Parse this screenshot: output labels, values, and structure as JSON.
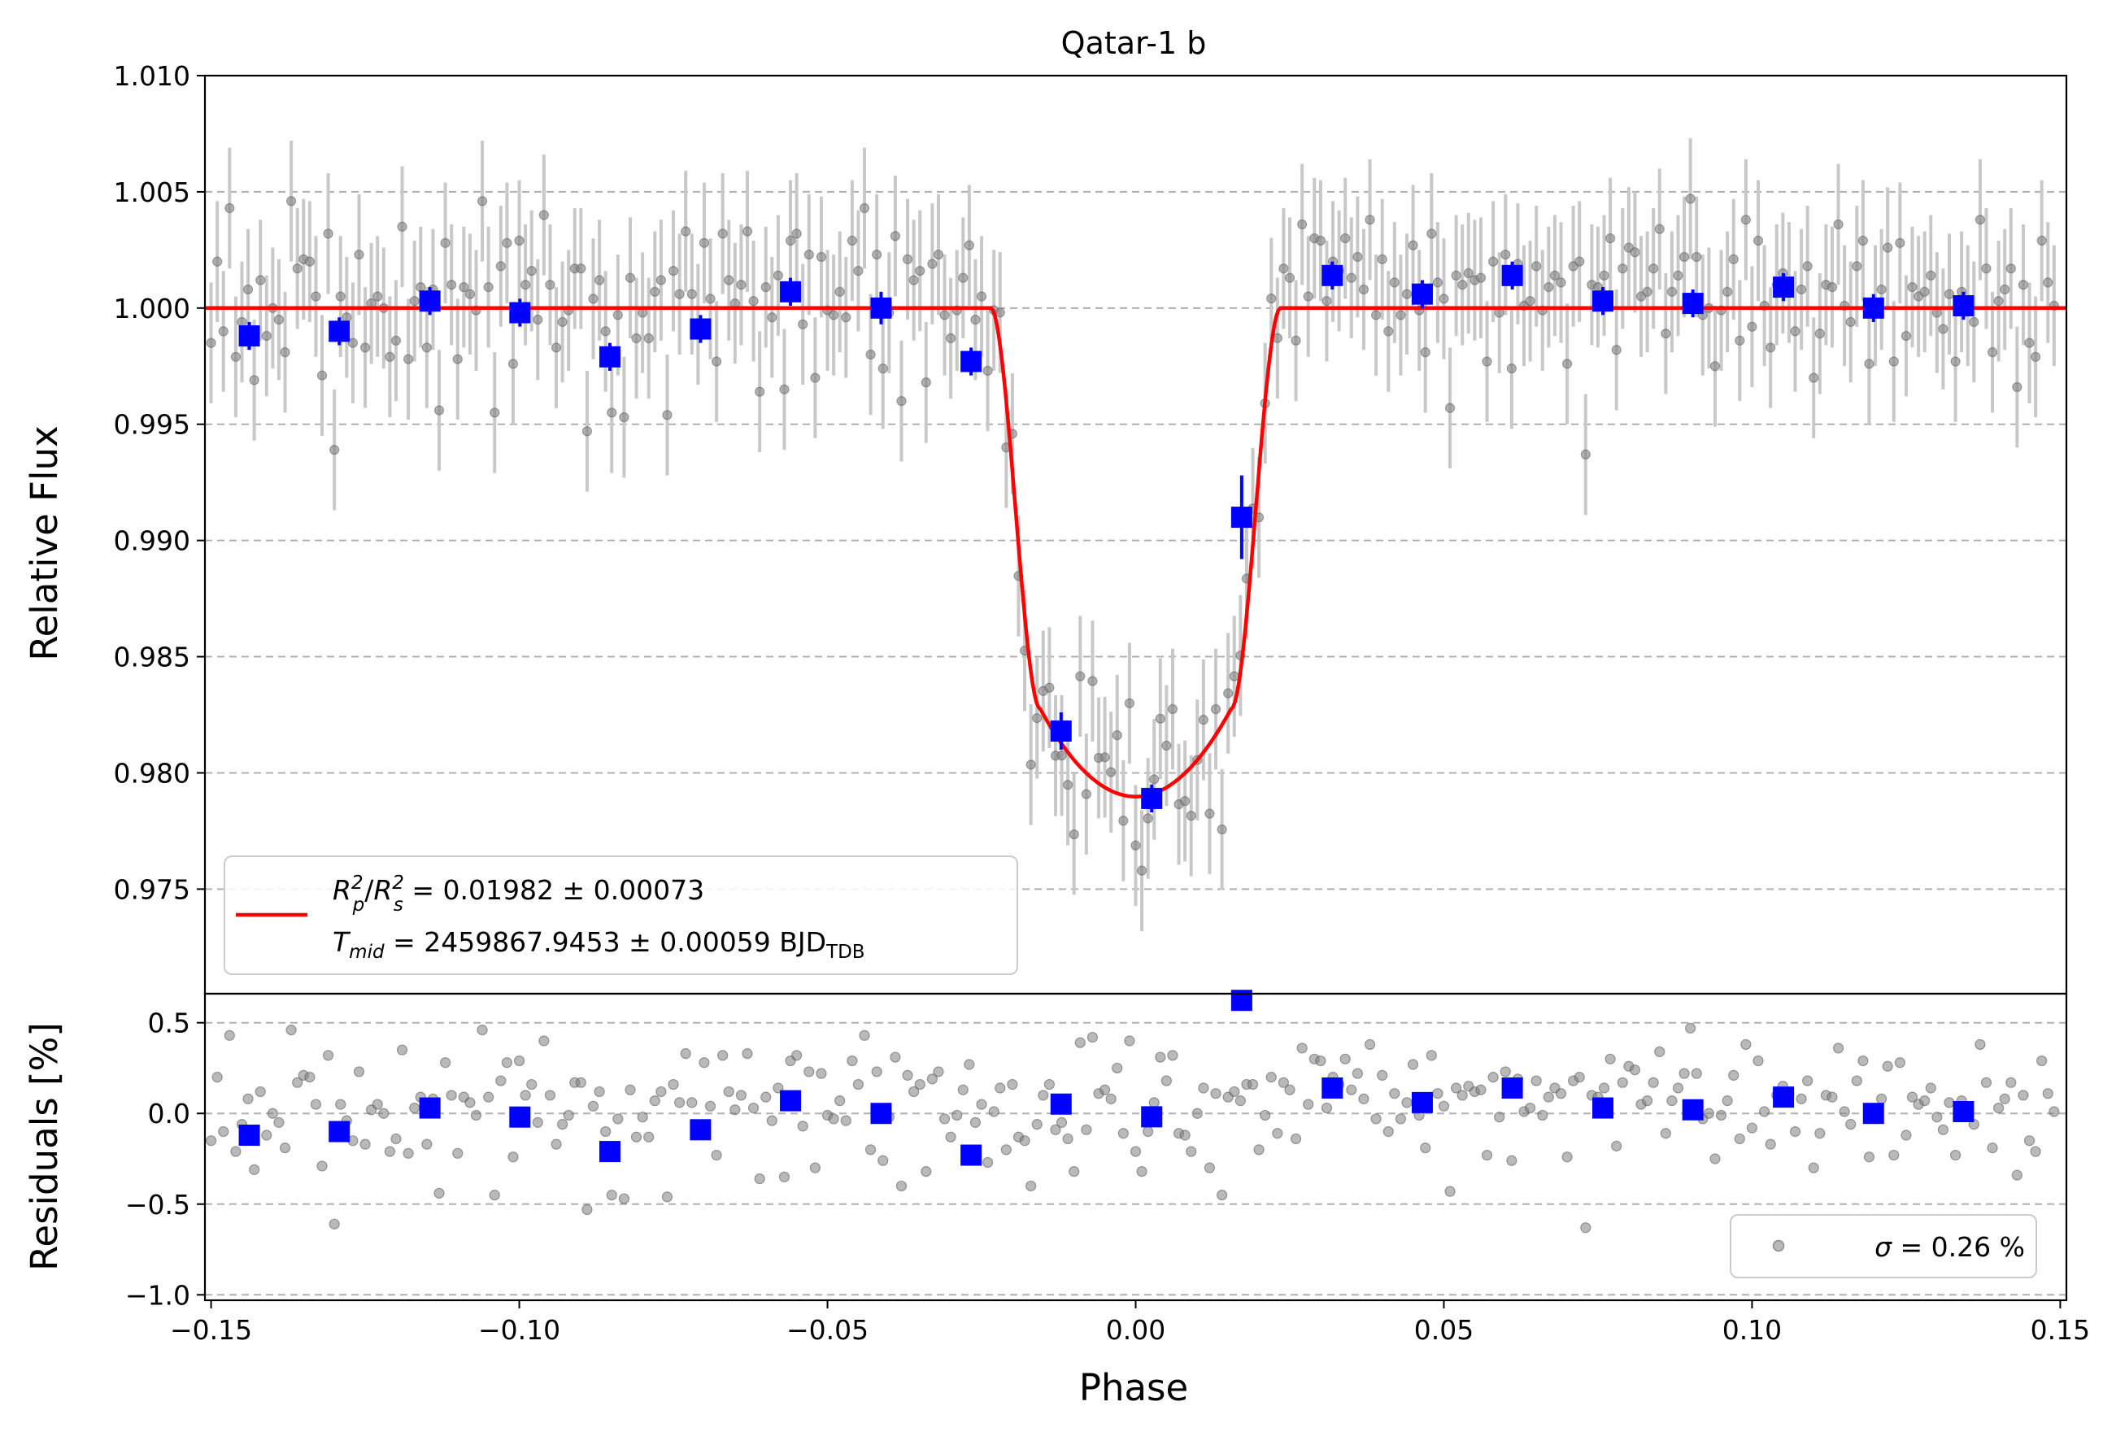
{
  "chart_data": [
    {
      "type": "scatter",
      "panel": "main",
      "title": "Qatar-1 b",
      "ylabel": "Relative Flux",
      "xlim": [
        -0.151,
        0.151
      ],
      "ylim": [
        0.9705,
        1.01
      ],
      "yticks": [
        "0.975",
        "0.980",
        "0.985",
        "0.990",
        "0.995",
        "1.000",
        "1.005",
        "1.010"
      ],
      "grid": "y dashed",
      "legend_placement": "lower-left",
      "legend": {
        "ratio_prefix": "R",
        "ratio_p_sub": "p",
        "ratio_s_sub": "s",
        "ratio_sup": "2",
        "ratio_slash": "/",
        "ratio_value": " = 0.01982 ± 0.00073",
        "t_prefix": "T",
        "t_sub": "mid",
        "t_value": " = 2459867.9453 ± 0.00059 BJD",
        "t_unit_sub": "TDB"
      },
      "model": {
        "name": "transit model",
        "baseline": 1.0,
        "depth": 0.02102,
        "t1": -0.0235,
        "t2": -0.0155,
        "t3": 0.0155,
        "t4": 0.0235,
        "color": "#ff0000"
      },
      "binned": {
        "color": "#0000ff",
        "x": [
          -0.1438,
          -0.1292,
          -0.1145,
          -0.0999,
          -0.0853,
          -0.0706,
          -0.056,
          -0.0413,
          -0.0267,
          -0.0121,
          0.0026,
          0.0172,
          0.0319,
          0.0465,
          0.0611,
          0.0758,
          0.0904,
          0.1051,
          0.1197,
          0.1343
        ],
        "y": [
          0.9988,
          0.999,
          1.0003,
          0.9998,
          0.9979,
          0.9991,
          1.0007,
          1.0,
          0.9977,
          0.9818,
          0.9789,
          0.991,
          1.0014,
          1.0006,
          1.0014,
          1.0003,
          1.0002,
          1.0009,
          1.0,
          1.0001
        ],
        "yerr": [
          0.0006,
          0.0006,
          0.0006,
          0.0006,
          0.0006,
          0.0006,
          0.0006,
          0.0007,
          0.0006,
          0.0008,
          0.0006,
          0.0018,
          0.0006,
          0.0006,
          0.0006,
          0.0006,
          0.0006,
          0.0006,
          0.0006,
          0.0006
        ]
      },
      "raw": {
        "color": "#808080",
        "n": 300,
        "x_range": [
          -0.15,
          0.15
        ],
        "typical_error": 0.0026,
        "residual_sigma_percent": 0.26,
        "phase": [
          -0.15,
          -0.149,
          -0.148,
          -0.147,
          -0.146,
          -0.145,
          -0.144,
          -0.143,
          -0.142,
          -0.141,
          -0.14,
          -0.139,
          -0.138,
          -0.137,
          -0.136,
          -0.135,
          -0.134,
          -0.133,
          -0.132,
          -0.131,
          -0.13,
          -0.129,
          -0.128,
          -0.127,
          -0.126,
          -0.125,
          -0.124,
          -0.123,
          -0.122,
          -0.121,
          -0.12,
          -0.119,
          -0.118,
          -0.117,
          -0.116,
          -0.115,
          -0.114,
          -0.113,
          -0.112,
          -0.111,
          -0.11,
          -0.109,
          -0.108,
          -0.107,
          -0.106,
          -0.105,
          -0.104,
          -0.103,
          -0.102,
          -0.101,
          -0.1,
          -0.099,
          -0.098,
          -0.097,
          -0.096,
          -0.095,
          -0.094,
          -0.093,
          -0.092,
          -0.091,
          -0.09,
          -0.089,
          -0.088,
          -0.087,
          -0.086,
          -0.085,
          -0.084,
          -0.083,
          -0.082,
          -0.081,
          -0.08,
          -0.079,
          -0.078,
          -0.077,
          -0.076,
          -0.075,
          -0.074,
          -0.073,
          -0.072,
          -0.071,
          -0.07,
          -0.069,
          -0.068,
          -0.067,
          -0.066,
          -0.065,
          -0.064,
          -0.063,
          -0.062,
          -0.061,
          -0.06,
          -0.059,
          -0.058,
          -0.057,
          -0.056,
          -0.055,
          -0.054,
          -0.053,
          -0.052,
          -0.051,
          -0.05,
          -0.049,
          -0.048,
          -0.047,
          -0.046,
          -0.045,
          -0.044,
          -0.043,
          -0.042,
          -0.041,
          -0.04,
          -0.039,
          -0.038,
          -0.037,
          -0.036,
          -0.035,
          -0.034,
          -0.033,
          -0.032,
          -0.031,
          -0.03,
          -0.029,
          -0.028,
          -0.027,
          -0.026,
          -0.025,
          -0.024,
          -0.023,
          -0.022,
          -0.021,
          -0.02,
          -0.019,
          -0.018,
          -0.017,
          -0.016,
          -0.015,
          -0.014,
          -0.013,
          -0.012,
          -0.011,
          -0.01,
          -0.009,
          -0.008,
          -0.007,
          -0.006,
          -0.005,
          -0.004,
          -0.003,
          -0.002,
          -0.001,
          0.0,
          0.001,
          0.002,
          0.003,
          0.004,
          0.005,
          0.006,
          0.007,
          0.008,
          0.009,
          0.01,
          0.011,
          0.012,
          0.013,
          0.014,
          0.015,
          0.016,
          0.017,
          0.018,
          0.019,
          0.02,
          0.021,
          0.022,
          0.023,
          0.024,
          0.025,
          0.026,
          0.027,
          0.028,
          0.029,
          0.03,
          0.031,
          0.032,
          0.033,
          0.034,
          0.035,
          0.036,
          0.037,
          0.038,
          0.039,
          0.04,
          0.041,
          0.042,
          0.043,
          0.044,
          0.045,
          0.046,
          0.047,
          0.048,
          0.049,
          0.05,
          0.051,
          0.052,
          0.053,
          0.054,
          0.055,
          0.056,
          0.057,
          0.058,
          0.059,
          0.06,
          0.061,
          0.062,
          0.063,
          0.064,
          0.065,
          0.066,
          0.067,
          0.068,
          0.069,
          0.07,
          0.071,
          0.072,
          0.073,
          0.074,
          0.075,
          0.076,
          0.077,
          0.078,
          0.079,
          0.08,
          0.081,
          0.082,
          0.083,
          0.084,
          0.085,
          0.086,
          0.087,
          0.088,
          0.089,
          0.09,
          0.091,
          0.092,
          0.093,
          0.094,
          0.095,
          0.096,
          0.097,
          0.098,
          0.099,
          0.1,
          0.101,
          0.102,
          0.103,
          0.104,
          0.105,
          0.106,
          0.107,
          0.108,
          0.109,
          0.11,
          0.111,
          0.112,
          0.113,
          0.114,
          0.115,
          0.116,
          0.117,
          0.118,
          0.119,
          0.12,
          0.121,
          0.122,
          0.123,
          0.124,
          0.125,
          0.126,
          0.127,
          0.128,
          0.129,
          0.13,
          0.131,
          0.132,
          0.133,
          0.134,
          0.135,
          0.136,
          0.137,
          0.138,
          0.139,
          0.14,
          0.141,
          0.142,
          0.143,
          0.144,
          0.145,
          0.146,
          0.147,
          0.148,
          0.149
        ],
        "residual_percent": [
          -0.15,
          0.2,
          -0.1,
          0.43,
          -0.21,
          -0.06,
          0.08,
          -0.31,
          0.12,
          -0.12,
          0.0,
          -0.05,
          -0.19,
          0.46,
          0.17,
          0.21,
          0.2,
          0.05,
          -0.29,
          0.32,
          -0.61,
          0.05,
          -0.04,
          -0.15,
          0.23,
          -0.17,
          0.02,
          0.05,
          0.0,
          -0.21,
          -0.14,
          0.35,
          -0.22,
          0.03,
          0.09,
          -0.17,
          0.08,
          -0.44,
          0.28,
          0.1,
          -0.22,
          0.09,
          0.06,
          -0.01,
          0.46,
          0.09,
          -0.45,
          0.18,
          0.28,
          -0.24,
          0.29,
          0.1,
          0.16,
          -0.05,
          0.4,
          0.1,
          -0.17,
          -0.06,
          -0.01,
          0.17,
          0.17,
          -0.53,
          0.04,
          0.12,
          -0.1,
          -0.45,
          -0.03,
          -0.47,
          0.13,
          -0.13,
          -0.02,
          -0.13,
          0.07,
          0.12,
          -0.46,
          0.16,
          0.06,
          0.33,
          0.06,
          -0.07,
          0.28,
          0.04,
          -0.23,
          0.32,
          0.12,
          0.02,
          0.1,
          0.33,
          0.03,
          -0.36,
          0.09,
          -0.04,
          0.14,
          -0.35,
          0.29,
          0.32,
          -0.07,
          0.23,
          -0.3,
          0.22,
          -0.01,
          -0.03,
          0.07,
          -0.04,
          0.29,
          0.16,
          0.43,
          -0.2,
          0.23,
          -0.26,
          -0.02,
          0.31,
          -0.4,
          0.21,
          0.12,
          0.16,
          -0.32,
          0.19,
          0.23,
          -0.03,
          -0.13,
          -0.01,
          0.13,
          0.27,
          -0.05,
          0.05,
          -0.27,
          0.01,
          0.14,
          -0.2,
          0.16,
          -0.13,
          -0.15,
          -0.4,
          -0.06,
          0.1,
          0.16,
          -0.09,
          -0.05,
          -0.14,
          -0.32,
          0.39,
          -0.09,
          0.42,
          0.11,
          0.13,
          0.08,
          0.25,
          -0.11,
          0.4,
          -0.21,
          -0.32,
          -0.1,
          0.06,
          0.31,
          0.18,
          0.32,
          -0.11,
          -0.12,
          -0.21,
          0.0,
          0.14,
          -0.3,
          0.11,
          -0.45,
          0.09,
          0.12,
          0.07,
          0.16,
          0.16,
          -0.2,
          -0.01,
          0.2,
          -0.11,
          0.17,
          0.13,
          -0.14,
          0.36,
          0.05,
          0.3,
          0.29,
          0.03,
          0.2,
          0.16,
          0.3,
          0.13,
          0.22,
          0.08,
          0.38,
          -0.03,
          0.21,
          -0.1,
          0.11,
          -0.03,
          0.06,
          0.27,
          -0.01,
          -0.19,
          0.32,
          0.11,
          0.04,
          -0.43,
          0.14,
          0.1,
          0.15,
          0.12,
          0.13,
          -0.23,
          0.2,
          -0.02,
          0.23,
          -0.26,
          0.19,
          0.01,
          0.03,
          0.18,
          -0.01,
          0.09,
          0.14,
          0.11,
          -0.24,
          0.18,
          0.2,
          -0.63,
          0.1,
          0.09,
          0.14,
          0.3,
          -0.18,
          0.17,
          0.26,
          0.24,
          0.05,
          0.07,
          0.17,
          0.34,
          -0.11,
          0.07,
          0.14,
          0.22,
          0.47,
          0.22,
          -0.03,
          0.0,
          -0.25,
          -0.01,
          0.07,
          0.21,
          -0.14,
          0.38,
          -0.08,
          0.29,
          0.01,
          -0.17,
          0.1,
          0.15,
          0.11,
          -0.1,
          0.08,
          0.18,
          -0.3,
          -0.11,
          0.1,
          0.09,
          0.36,
          0.01,
          -0.06,
          0.18,
          0.29,
          -0.24,
          0.01,
          0.08,
          0.26,
          -0.23,
          0.28,
          -0.12,
          0.09,
          0.05,
          0.07,
          0.14,
          -0.02,
          -0.09,
          0.06,
          -0.23,
          0.07,
          0.01,
          -0.06,
          0.38,
          0.17,
          -0.19,
          0.03,
          0.08,
          0.17,
          -0.34,
          0.1,
          -0.15,
          -0.21,
          0.29,
          0.11,
          0.01,
          -0.26,
          -0.21,
          0.23,
          0.06,
          0.01,
          -0.05,
          -0.07
        ]
      }
    },
    {
      "type": "scatter",
      "panel": "residuals",
      "xlabel": "Phase",
      "ylabel": "Residuals [%]",
      "xlim": [
        -0.151,
        0.151
      ],
      "ylim": [
        -1.03,
        0.66
      ],
      "xticks": [
        "−0.15",
        "−0.10",
        "−0.05",
        "0.00",
        "0.05",
        "0.10",
        "0.15"
      ],
      "yticks": [
        "−1.0",
        "−0.5",
        "0.0",
        "0.5"
      ],
      "grid": "y dashed",
      "legend_placement": "lower-right",
      "legend": {
        "sigma_symbol": "σ",
        "sigma_text": " = 0.26 %"
      }
    }
  ]
}
